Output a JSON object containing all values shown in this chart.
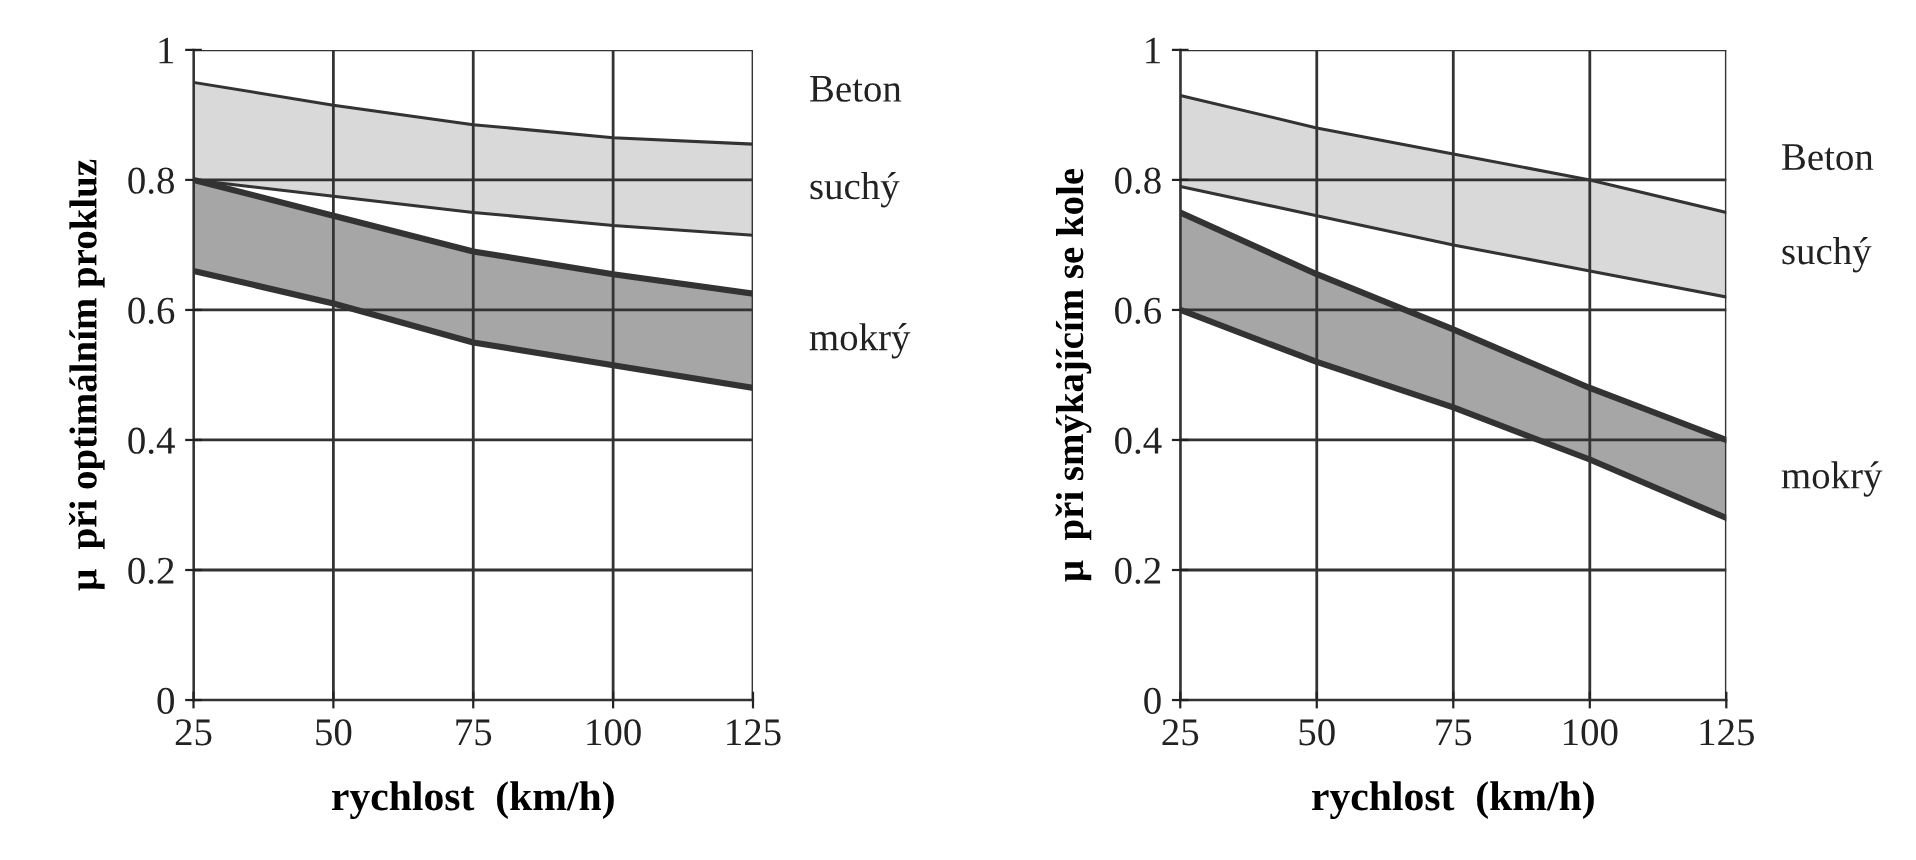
{
  "chart_data": [
    {
      "type": "area",
      "stacked": true,
      "xlabel": "rychlost  (km/h)",
      "ylabel": "μ  při optimálním prokluz",
      "x": [
        25,
        50,
        75,
        100,
        125
      ],
      "xlim": [
        25,
        125
      ],
      "xticks": [
        25,
        50,
        75,
        100,
        125
      ],
      "ylim": [
        0,
        1
      ],
      "yticks": [
        0,
        0.2,
        0.4,
        0.6,
        0.8,
        1
      ],
      "grid": true,
      "annotations": [
        "Beton"
      ],
      "series": [
        {
          "color": "#ffffff",
          "values": [
            0.66,
            0.61,
            0.55,
            0.515,
            0.48
          ]
        },
        {
          "name": "mokrý",
          "color": "#a6a6a6",
          "values": [
            0.14,
            0.135,
            0.14,
            0.14,
            0.145
          ]
        },
        {
          "color": "#ffffff",
          "values": [
            0,
            0.03,
            0.06,
            0.075,
            0.09
          ]
        },
        {
          "name": "suchý",
          "color": "#d9d9d9",
          "values": [
            0.15,
            0.14,
            0.135,
            0.135,
            0.14
          ]
        }
      ]
    },
    {
      "type": "area",
      "stacked": true,
      "xlabel": "rychlost  (km/h)",
      "ylabel": "μ  při smýkajícím se kole",
      "x": [
        25,
        50,
        75,
        100,
        125
      ],
      "xlim": [
        25,
        125
      ],
      "xticks": [
        25,
        50,
        75,
        100,
        125
      ],
      "ylim": [
        0,
        1
      ],
      "yticks": [
        0,
        0.2,
        0.4,
        0.6,
        0.8,
        1
      ],
      "grid": true,
      "annotations": [
        "Beton"
      ],
      "series": [
        {
          "color": "#ffffff",
          "values": [
            0.6,
            0.52,
            0.45,
            0.37,
            0.28
          ]
        },
        {
          "name": "mokrý",
          "color": "#a6a6a6",
          "values": [
            0.15,
            0.135,
            0.12,
            0.11,
            0.12
          ]
        },
        {
          "color": "#ffffff",
          "values": [
            0.04,
            0.09,
            0.13,
            0.18,
            0.22
          ]
        },
        {
          "name": "suchý",
          "color": "#d9d9d9",
          "values": [
            0.14,
            0.135,
            0.14,
            0.14,
            0.13
          ]
        }
      ]
    }
  ]
}
